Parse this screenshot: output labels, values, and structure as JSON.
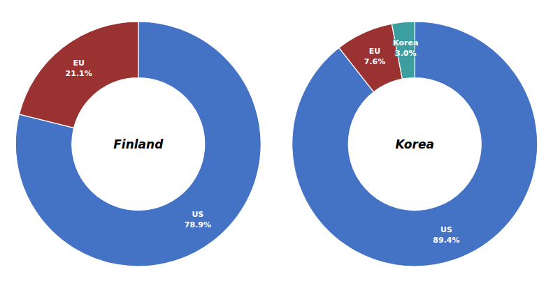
{
  "chart_data": [
    {
      "type": "pie",
      "title": "Finland",
      "categories": [
        "US",
        "EU"
      ],
      "values": [
        78.9,
        21.1
      ],
      "value_labels": [
        "78.9%",
        "21.1%"
      ],
      "colors": [
        "#4472C4",
        "#9B3232"
      ],
      "data_labels": true
    },
    {
      "type": "pie",
      "title": "Korea",
      "categories": [
        "US",
        "EU",
        "Korea"
      ],
      "values": [
        89.4,
        7.6,
        3.0
      ],
      "value_labels": [
        "89.4%",
        "7.6%",
        "3.0%"
      ],
      "colors": [
        "#4472C4",
        "#9B3232",
        "#3D9EA0"
      ],
      "data_labels": true
    }
  ]
}
